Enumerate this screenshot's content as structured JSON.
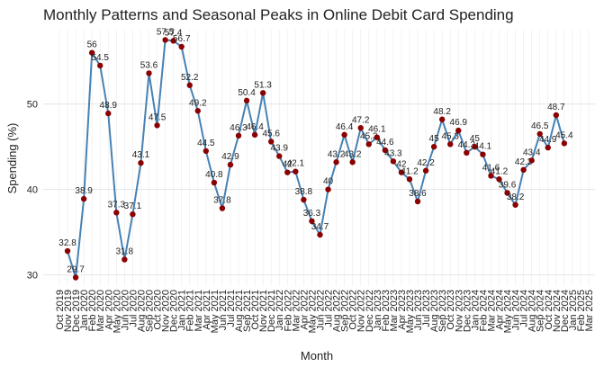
{
  "chart_data": {
    "type": "line",
    "title": "Monthly Patterns and Seasonal Peaks in Online Debit Card Spending",
    "x_label": "Month",
    "y_label": "Spending (%)",
    "categories": [
      "Oct 2019",
      "Nov 2019",
      "Dec 2019",
      "Jan 2020",
      "Feb 2020",
      "Mar 2020",
      "Apr 2020",
      "May 2020",
      "Jun 2020",
      "Jul 2020",
      "Aug 2020",
      "Sep 2020",
      "Oct 2020",
      "Nov 2020",
      "Dec 2020",
      "Jan 2021",
      "Feb 2021",
      "Mar 2021",
      "Apr 2021",
      "May 2021",
      "Jun 2021",
      "Jul 2021",
      "Aug 2021",
      "Sep 2021",
      "Oct 2021",
      "Nov 2021",
      "Dec 2021",
      "Jan 2022",
      "Feb 2022",
      "Mar 2022",
      "Apr 2022",
      "May 2022",
      "Jun 2022",
      "Jul 2022",
      "Aug 2022",
      "Sep 2022",
      "Oct 2022",
      "Nov 2022",
      "Dec 2022",
      "Jan 2023",
      "Feb 2023",
      "Mar 2023",
      "Apr 2023",
      "May 2023",
      "Jun 2023",
      "Jul 2023",
      "Aug 2023",
      "Sep 2023",
      "Oct 2023",
      "Nov 2023",
      "Dec 2023",
      "Jan 2024",
      "Feb 2024",
      "Mar 2024",
      "Apr 2024",
      "May 2024",
      "Jun 2024",
      "Jul 2024",
      "Aug 2024",
      "Sep 2024",
      "Oct 2024",
      "Nov 2024",
      "Dec 2024",
      "Jan 2025",
      "Feb 2025",
      "Mar 2025"
    ],
    "values": [
      null,
      32.8,
      29.7,
      38.9,
      56,
      54.5,
      48.9,
      37.3,
      31.8,
      37.1,
      43.1,
      53.6,
      47.5,
      57.5,
      57.4,
      56.7,
      52.2,
      49.2,
      44.5,
      40.8,
      37.8,
      42.9,
      46.3,
      50.4,
      46.4,
      51.3,
      45.6,
      43.9,
      42,
      42.1,
      38.8,
      36.3,
      34.7,
      40,
      43.2,
      46.4,
      43.2,
      47.2,
      45.3,
      46.1,
      44.6,
      43.3,
      42,
      41.2,
      38.6,
      42.2,
      45,
      48.2,
      45.3,
      46.9,
      44.3,
      45,
      44.1,
      41.6,
      41.2,
      39.6,
      38.2,
      42.3,
      43.4,
      46.5,
      44.9,
      48.7,
      45.4,
      null,
      null,
      null
    ],
    "color": "#4682b4",
    "marker_color": "#8b0000",
    "ylim": [
      28.7,
      58.7
    ],
    "yticks": [
      30,
      40,
      50
    ],
    "grid": true
  }
}
